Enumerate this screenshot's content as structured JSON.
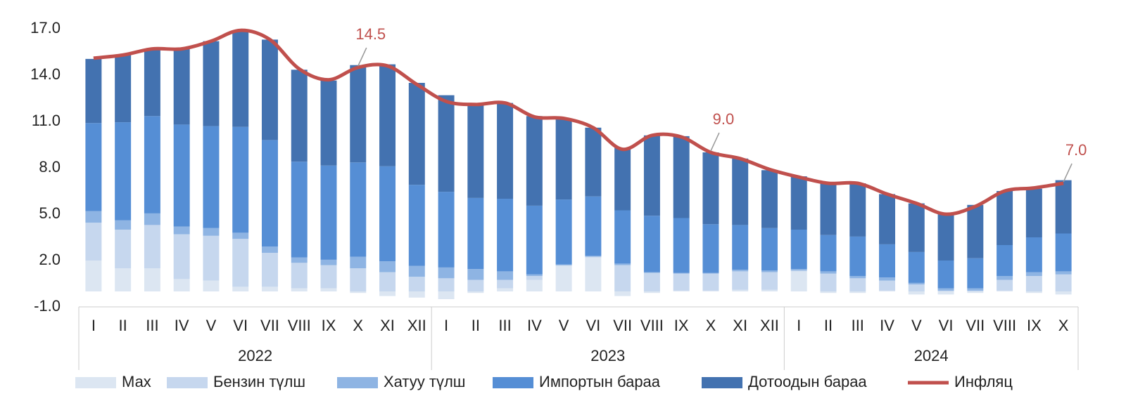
{
  "chart_data": {
    "type": "stacked-bar-line",
    "groups": [
      {
        "label": "2022",
        "categories": [
          "I",
          "II",
          "III",
          "IV",
          "V",
          "VI",
          "VII",
          "VIII",
          "IX",
          "X",
          "XI",
          "XII"
        ]
      },
      {
        "label": "2023",
        "categories": [
          "I",
          "II",
          "III",
          "IV",
          "V",
          "VI",
          "VII",
          "VIII",
          "IX",
          "X",
          "XI",
          "XII"
        ]
      },
      {
        "label": "2024",
        "categories": [
          "I",
          "II",
          "III",
          "IV",
          "V",
          "VI",
          "VII",
          "VIII",
          "IX",
          "X"
        ]
      }
    ],
    "series": [
      {
        "name": "Мах",
        "type": "bar",
        "color": "#dce6f2",
        "values": [
          2.0,
          1.5,
          1.5,
          0.8,
          0.7,
          0.3,
          0.3,
          0.2,
          0.2,
          -0.1,
          -0.3,
          -0.4,
          -0.5,
          -0.1,
          0.2,
          0.75,
          1.65,
          2.2,
          -0.3,
          -0.1,
          0.05,
          0.05,
          0.1,
          0.1,
          1.3,
          -0.1,
          -0.1,
          0.05,
          -0.2,
          -0.2,
          -0.1,
          0.05,
          -0.1,
          -0.2
        ]
      },
      {
        "name": "Бензин түлш",
        "type": "bar",
        "color": "#c6d7ee",
        "values": [
          2.45,
          2.5,
          2.8,
          2.9,
          2.9,
          3.1,
          2.2,
          1.65,
          1.5,
          1.5,
          1.25,
          0.95,
          0.85,
          0.75,
          0.55,
          0.25,
          0.05,
          0.05,
          1.7,
          1.2,
          1.1,
          1.1,
          1.2,
          1.15,
          0.05,
          1.15,
          0.85,
          0.65,
          0.45,
          0.05,
          0.05,
          0.7,
          1.0,
          1.1
        ]
      },
      {
        "name": "Хатуу түлш",
        "type": "bar",
        "color": "#8eb4e3",
        "values": [
          0.75,
          0.6,
          0.75,
          0.5,
          0.5,
          0.4,
          0.4,
          0.35,
          0.35,
          0.75,
          0.7,
          0.7,
          0.7,
          0.7,
          0.55,
          0.1,
          0.05,
          0.05,
          0.1,
          0.05,
          0.05,
          0.05,
          0.1,
          0.1,
          0.1,
          0.15,
          0.15,
          0.2,
          0.1,
          0.15,
          0.15,
          0.25,
          0.25,
          0.2
        ]
      },
      {
        "name": "Импортын бараа",
        "type": "bar",
        "color": "#558ed5",
        "values": [
          5.7,
          6.35,
          6.3,
          6.6,
          6.6,
          6.85,
          6.9,
          6.2,
          6.1,
          6.1,
          6.15,
          5.25,
          4.9,
          4.6,
          4.7,
          4.45,
          4.2,
          3.85,
          3.45,
          3.65,
          3.55,
          3.15,
          2.9,
          2.75,
          2.55,
          2.35,
          2.55,
          2.15,
          2.0,
          1.8,
          1.95,
          2.0,
          2.25,
          2.45
        ]
      },
      {
        "name": "Дотоодын бараа",
        "type": "bar",
        "color": "#4372b0",
        "values": [
          4.15,
          4.35,
          4.35,
          4.95,
          5.5,
          6.15,
          6.5,
          5.95,
          5.5,
          6.3,
          6.6,
          6.6,
          6.25,
          6.1,
          6.2,
          5.8,
          5.25,
          4.45,
          4.05,
          5.2,
          5.3,
          4.65,
          4.3,
          3.75,
          3.45,
          3.35,
          3.45,
          3.25,
          3.15,
          3.0,
          3.45,
          3.5,
          3.15,
          3.45
        ]
      },
      {
        "name": "Инфляц",
        "type": "line",
        "color": "#c0504d",
        "values": [
          15.1,
          15.3,
          15.7,
          15.7,
          16.2,
          16.9,
          16.3,
          14.4,
          13.7,
          14.5,
          14.6,
          13.4,
          12.3,
          12.1,
          12.2,
          11.3,
          11.2,
          10.6,
          9.2,
          10.1,
          10.0,
          9.0,
          8.6,
          7.9,
          7.4,
          7.0,
          7.0,
          6.3,
          5.7,
          5.0,
          5.5,
          6.5,
          6.7,
          7.0
        ],
        "value_labels": [
          null,
          null,
          null,
          null,
          null,
          null,
          null,
          null,
          null,
          "14.5",
          null,
          null,
          null,
          null,
          null,
          null,
          null,
          null,
          null,
          null,
          null,
          "9.0",
          null,
          null,
          null,
          null,
          null,
          null,
          null,
          null,
          null,
          null,
          null,
          "7.0"
        ]
      }
    ],
    "ylim": [
      -1,
      17
    ],
    "yticks": [
      {
        "value": -1,
        "label": "-1.0"
      },
      {
        "value": 2,
        "label": "2.0"
      },
      {
        "value": 5,
        "label": "5.0"
      },
      {
        "value": 8,
        "label": "8.0"
      },
      {
        "value": 11,
        "label": "11.0"
      },
      {
        "value": 14,
        "label": "14.0"
      },
      {
        "value": 17,
        "label": "17.0"
      }
    ],
    "grid": false,
    "legend": "bottom"
  }
}
